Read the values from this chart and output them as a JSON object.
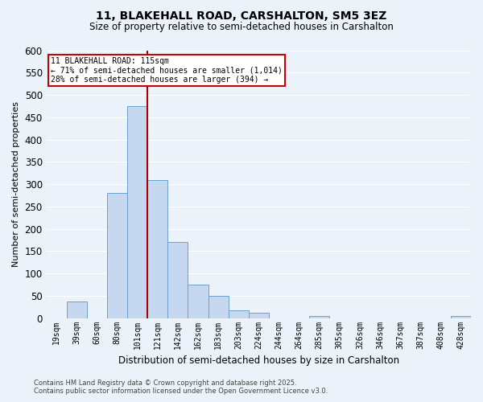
{
  "title": "11, BLAKEHALL ROAD, CARSHALTON, SM5 3EZ",
  "subtitle": "Size of property relative to semi-detached houses in Carshalton",
  "xlabel": "Distribution of semi-detached houses by size in Carshalton",
  "ylabel": "Number of semi-detached properties",
  "footer_line1": "Contains HM Land Registry data © Crown copyright and database right 2025.",
  "footer_line2": "Contains public sector information licensed under the Open Government Licence v3.0.",
  "bins": [
    "19sqm",
    "39sqm",
    "60sqm",
    "80sqm",
    "101sqm",
    "121sqm",
    "142sqm",
    "162sqm",
    "183sqm",
    "203sqm",
    "224sqm",
    "244sqm",
    "264sqm",
    "285sqm",
    "305sqm",
    "326sqm",
    "346sqm",
    "367sqm",
    "387sqm",
    "408sqm",
    "428sqm"
  ],
  "values": [
    0,
    38,
    0,
    280,
    475,
    310,
    170,
    75,
    50,
    18,
    12,
    0,
    0,
    5,
    0,
    0,
    0,
    0,
    0,
    0,
    5
  ],
  "bar_color": "#C5D8EF",
  "bar_edge_color": "#6AA0CC",
  "background_color": "#EBF2FA",
  "grid_color": "#FFFFFF",
  "property_line_x": 4.5,
  "annotation_text_line1": "11 BLAKEHALL ROAD: 115sqm",
  "annotation_text_line2": "← 71% of semi-detached houses are smaller (1,014)",
  "annotation_text_line3": "28% of semi-detached houses are larger (394) →",
  "annotation_box_color": "#FFFFFF",
  "annotation_border_color": "#CC0000",
  "red_line_color": "#AA0000",
  "ylim": [
    0,
    600
  ],
  "yticks": [
    0,
    50,
    100,
    150,
    200,
    250,
    300,
    350,
    400,
    450,
    500,
    550,
    600
  ]
}
